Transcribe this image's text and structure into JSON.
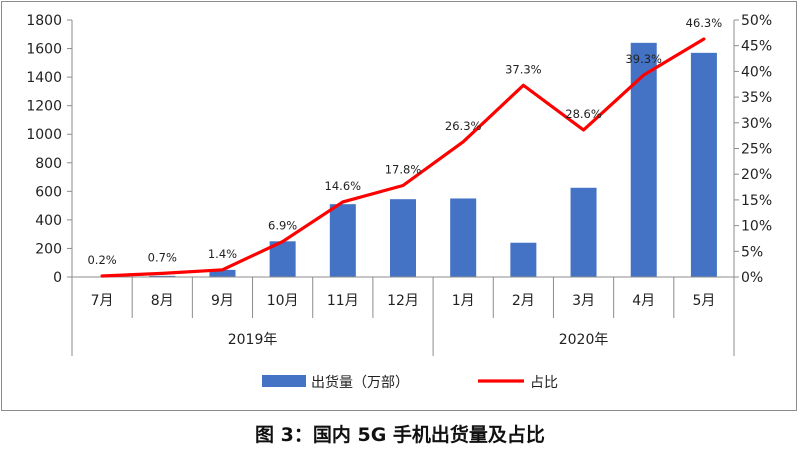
{
  "chart_data": {
    "type": "bar",
    "categories": [
      "7月",
      "8月",
      "9月",
      "10月",
      "11月",
      "12月",
      "1月",
      "2月",
      "3月",
      "4月",
      "5月"
    ],
    "groups": [
      {
        "label": "2019年",
        "start": 0,
        "end": 5
      },
      {
        "label": "2020年",
        "start": 6,
        "end": 10
      }
    ],
    "series": [
      {
        "name": "出货量（万部）",
        "type": "bar",
        "axis": "left",
        "color": "#4472c4",
        "values": [
          2,
          8,
          50,
          250,
          510,
          545,
          550,
          240,
          625,
          1640,
          1570
        ]
      },
      {
        "name": "占比",
        "type": "line",
        "axis": "right",
        "color": "#ff0000",
        "values": [
          0.2,
          0.7,
          1.4,
          6.9,
          14.6,
          17.8,
          26.3,
          37.3,
          28.6,
          39.3,
          46.3
        ],
        "labels": [
          "0.2%",
          "0.7%",
          "1.4%",
          "6.9%",
          "14.6%",
          "17.8%",
          "26.3%",
          "37.3%",
          "28.6%",
          "39.3%",
          "46.3%"
        ]
      }
    ],
    "y_left": {
      "min": 0,
      "max": 1800,
      "step": 200,
      "ticks": [
        "0",
        "200",
        "400",
        "600",
        "800",
        "1000",
        "1200",
        "1400",
        "1600",
        "1800"
      ]
    },
    "y_right": {
      "min": 0,
      "max": 50,
      "step": 5,
      "ticks": [
        "0%",
        "5%",
        "10%",
        "15%",
        "20%",
        "25%",
        "30%",
        "35%",
        "40%",
        "45%",
        "50%"
      ]
    },
    "legend_position": "bottom",
    "grid": false
  },
  "caption": "图 3：国内 5G 手机出货量及占比"
}
